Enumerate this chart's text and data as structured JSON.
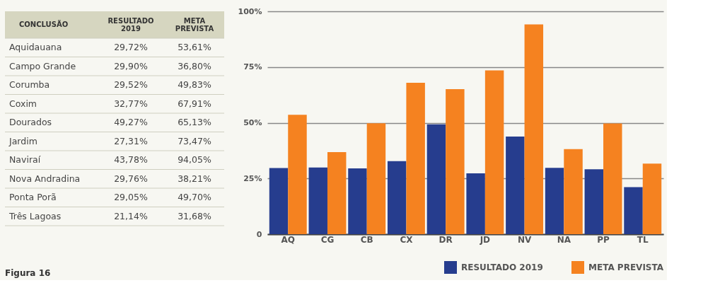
{
  "chart_data": [
    {
      "type": "other",
      "categories": [
        "Aquidauana",
        "Campo Grande",
        "Corumba",
        "Coxim",
        "Dourados",
        "Jardim",
        "Naviraí",
        "Nova Andradina",
        "Ponta Porã",
        "Três Lagoas"
      ],
      "series": [
        {
          "values": [
            29.72,
            29.9,
            29.52,
            32.77,
            49.27,
            27.31,
            43.78,
            29.76,
            29.05,
            21.14
          ],
          "value_labels": [
            "29,72%",
            "29,90%",
            "29,52%",
            "32,77%",
            "49,27%",
            "27,31%",
            "43,78%",
            "29,76%",
            "29,05%",
            "21,14%"
          ]
        },
        {
          "values": [
            53.61,
            36.8,
            49.83,
            67.91,
            65.13,
            73.47,
            94.05,
            38.21,
            49.7,
            31.68
          ],
          "value_labels": [
            "53,61%",
            "36,80%",
            "49,83%",
            "67,91%",
            "65,13%",
            "73,47%",
            "94,05%",
            "38,21%",
            "49,70%",
            "31,68%"
          ]
        }
      ],
      "annotations": [
        "CONCLUSÃO",
        "RESULTADO 2019",
        "META PREVISTA",
        "Figura 16"
      ]
    },
    {
      "type": "bar",
      "categories": [
        "AQ",
        "CG",
        "CB",
        "CX",
        "DR",
        "JD",
        "NV",
        "NA",
        "PP",
        "TL"
      ],
      "series": [
        {
          "name": "RESULTADO 2019",
          "color": "#263d8e",
          "values": [
            29.7,
            29.9,
            29.5,
            32.8,
            49.3,
            27.3,
            43.8,
            29.8,
            29.1,
            21.1
          ]
        },
        {
          "name": "META PREVISTA",
          "color": "#f58220",
          "values": [
            53.6,
            36.8,
            49.8,
            67.9,
            65.1,
            73.5,
            94.1,
            38.2,
            49.7,
            31.7
          ]
        }
      ],
      "ylim": [
        0,
        100
      ],
      "yticks": [
        {
          "value": 0,
          "label": "0"
        },
        {
          "value": 25,
          "label": "25%"
        },
        {
          "value": 50,
          "label": "50%"
        },
        {
          "value": 75,
          "label": "75%"
        },
        {
          "value": 100,
          "label": "100%"
        }
      ],
      "grid": "y",
      "legend": "bottom"
    }
  ]
}
